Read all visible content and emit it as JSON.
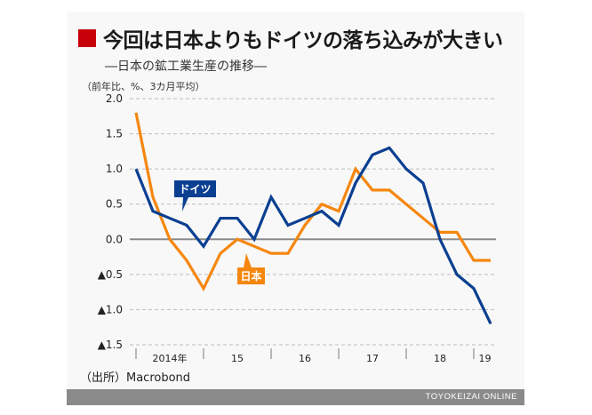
{
  "title": "今回は日本よりもドイツの落ち込みが大きい",
  "subtitle": "―日本の鉱工業生産の推移―",
  "unit_note": "（前年比、%、3カ月平均）",
  "source": "（出所）Macrobond",
  "footer": "TOYOKEIZAI ONLINE",
  "colors": {
    "title_marker": "#c8000a",
    "germany": "#0a3f91",
    "japan": "#f5870f",
    "footer_bg": "#8a8a8a"
  },
  "chart_data": {
    "type": "line",
    "title": "今回は日本よりもドイツの落ち込みが大きい",
    "subtitle": "―日本の鉱工業生産の推移―",
    "ylabel": "（前年比、%、3カ月平均）",
    "xlabel": "",
    "ylim": [
      -1.5,
      2.0
    ],
    "yticks": [
      2.0,
      1.5,
      1.0,
      0.5,
      0.0,
      -0.5,
      -1.0,
      -1.5
    ],
    "ytick_labels": [
      "2.0",
      "1.5",
      "1.0",
      "0.5",
      "0.0",
      "▲0.5",
      "▲1.0",
      "▲1.5"
    ],
    "grid": true,
    "x_period_labels": [
      "2014年",
      "15",
      "16",
      "17",
      "18",
      "19"
    ],
    "x_points_per_year": 4,
    "x": [
      "2014Q1",
      "2014Q2",
      "2014Q3",
      "2014Q4",
      "2015Q1",
      "2015Q2",
      "2015Q3",
      "2015Q4",
      "2016Q1",
      "2016Q2",
      "2016Q3",
      "2016Q4",
      "2017Q1",
      "2017Q2",
      "2017Q3",
      "2017Q4",
      "2018Q1",
      "2018Q2",
      "2018Q3",
      "2018Q4",
      "2019Q1",
      "2019Q2"
    ],
    "series": [
      {
        "name": "ドイツ",
        "color": "#0a3f91",
        "values": [
          1.0,
          0.4,
          0.3,
          0.2,
          -0.1,
          0.3,
          0.3,
          0.0,
          0.6,
          0.2,
          0.3,
          0.4,
          0.2,
          0.8,
          1.2,
          1.3,
          1.0,
          0.8,
          0.0,
          -0.5,
          -0.7,
          -1.2
        ]
      },
      {
        "name": "日本",
        "color": "#f5870f",
        "values": [
          1.8,
          0.6,
          0.0,
          -0.3,
          -0.7,
          -0.2,
          0.0,
          -0.1,
          -0.2,
          -0.2,
          0.2,
          0.5,
          0.4,
          1.0,
          0.7,
          0.7,
          0.5,
          0.3,
          0.1,
          0.1,
          -0.3,
          -0.3
        ]
      }
    ],
    "legend": "inline-callouts"
  }
}
